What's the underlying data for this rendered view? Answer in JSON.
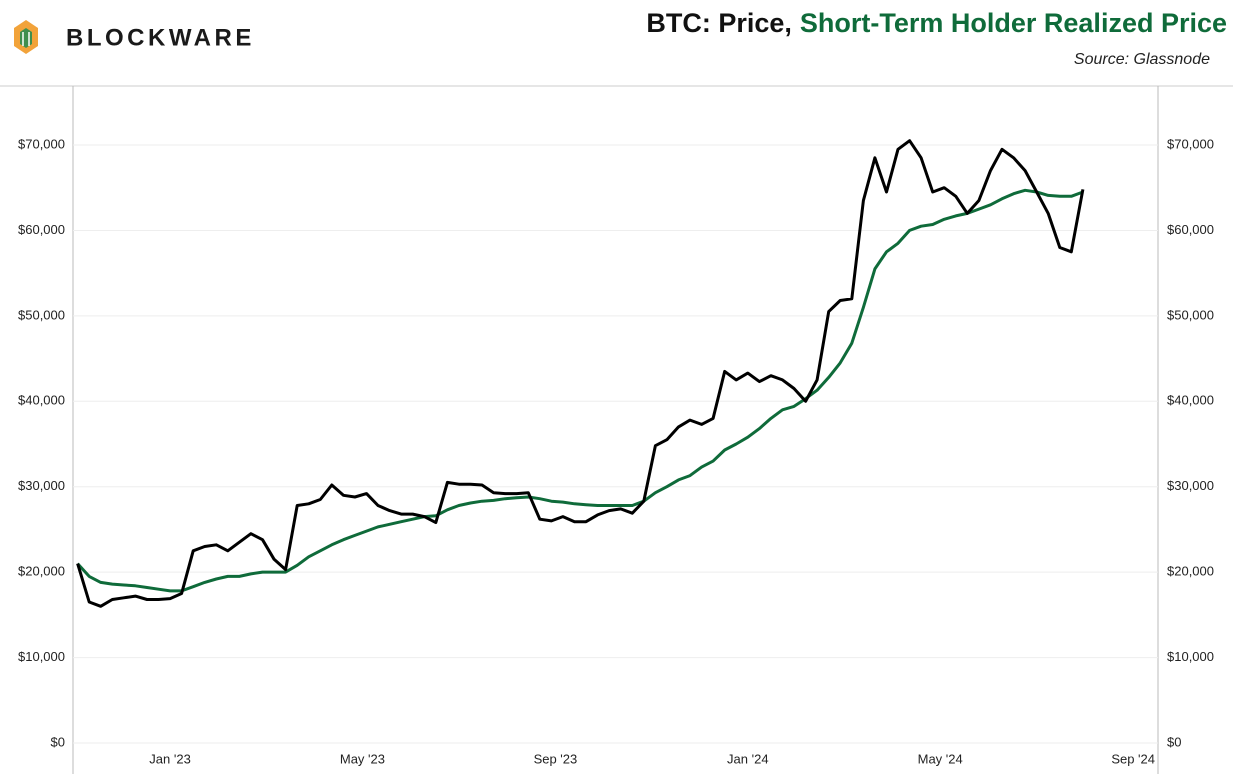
{
  "brand": "BLOCKWARE",
  "chart_data": {
    "type": "line",
    "title": [
      "BTC: Price,",
      "Short-Term Holder Realized Price"
    ],
    "subtitle": "Source: Glassnode",
    "x": [
      2022.84,
      2022.86,
      2022.88,
      2022.9,
      2022.92,
      2022.94,
      2022.96,
      2022.98,
      2023.0,
      2023.02,
      2023.04,
      2023.06,
      2023.08,
      2023.1,
      2023.12,
      2023.14,
      2023.16,
      2023.18,
      2023.2,
      2023.22,
      2023.24,
      2023.26,
      2023.28,
      2023.3,
      2023.32,
      2023.34,
      2023.36,
      2023.38,
      2023.4,
      2023.42,
      2023.44,
      2023.46,
      2023.48,
      2023.5,
      2023.52,
      2023.54,
      2023.56,
      2023.58,
      2023.6,
      2023.62,
      2023.64,
      2023.66,
      2023.68,
      2023.7,
      2023.72,
      2023.74,
      2023.76,
      2023.78,
      2023.8,
      2023.82,
      2023.84,
      2023.86,
      2023.88,
      2023.9,
      2023.92,
      2023.94,
      2023.96,
      2023.98,
      2024.0,
      2024.02,
      2024.04,
      2024.06,
      2024.08,
      2024.1,
      2024.12,
      2024.14,
      2024.16,
      2024.18,
      2024.2,
      2024.22,
      2024.24,
      2024.26,
      2024.28,
      2024.3,
      2024.32,
      2024.34,
      2024.36,
      2024.38,
      2024.4,
      2024.42,
      2024.44,
      2024.46,
      2024.48,
      2024.5,
      2024.52,
      2024.54,
      2024.56,
      2024.58
    ],
    "series": [
      {
        "color": "#000000",
        "values": [
          21000,
          16500,
          16000,
          16800,
          17000,
          17200,
          16800,
          16800,
          16900,
          17500,
          22500,
          23000,
          23200,
          22500,
          23500,
          24500,
          23800,
          21500,
          20300,
          27800,
          28000,
          28500,
          30200,
          29000,
          28800,
          29200,
          27800,
          27200,
          26800,
          26800,
          26500,
          25800,
          30500,
          30300,
          30300,
          30200,
          29300,
          29200,
          29200,
          29300,
          26200,
          26000,
          26500,
          25900,
          25900,
          26700,
          27200,
          27400,
          26900,
          28300,
          34800,
          35500,
          37000,
          37800,
          37300,
          38000,
          43500,
          42500,
          43300,
          42300,
          43000,
          42500,
          41500,
          40000,
          42500,
          50500,
          51800,
          52000,
          63500,
          68500,
          64500,
          69500,
          70500,
          68500,
          64500,
          65000,
          64000,
          62000,
          63500,
          67000,
          69500,
          68500,
          67000,
          64500,
          62000,
          58000,
          57500,
          64800
        ]
      },
      {
        "color": "#0f6b3a",
        "values": [
          21000,
          19500,
          18800,
          18600,
          18500,
          18400,
          18200,
          18000,
          17800,
          17800,
          18300,
          18800,
          19200,
          19500,
          19500,
          19800,
          20000,
          20000,
          20000,
          20800,
          21800,
          22500,
          23200,
          23800,
          24300,
          24800,
          25300,
          25600,
          25900,
          26200,
          26500,
          26600,
          27300,
          27800,
          28100,
          28300,
          28400,
          28600,
          28700,
          28800,
          28600,
          28300,
          28200,
          28000,
          27900,
          27800,
          27800,
          27800,
          27800,
          28300,
          29300,
          30000,
          30800,
          31300,
          32300,
          33000,
          34300,
          35000,
          35800,
          36800,
          38000,
          39000,
          39400,
          40300,
          41300,
          42800,
          44500,
          46800,
          51000,
          55500,
          57500,
          58500,
          60000,
          60500,
          60700,
          61300,
          61700,
          62000,
          62500,
          63000,
          63700,
          64300,
          64700,
          64500,
          64100,
          64000,
          64000,
          64500
        ]
      }
    ],
    "xlim": [
      2022.832,
      2024.71
    ],
    "xticks": [
      {
        "value": 2023.0,
        "label": "Jan '23"
      },
      {
        "value": 2023.333,
        "label": "May '23"
      },
      {
        "value": 2023.667,
        "label": "Sep '23"
      },
      {
        "value": 2024.0,
        "label": "Jan '24"
      },
      {
        "value": 2024.333,
        "label": "May '24"
      },
      {
        "value": 2024.667,
        "label": "Sep '24"
      }
    ],
    "ylim": [
      0,
      75000
    ],
    "yticks": [
      {
        "value": 0,
        "label": "$0"
      },
      {
        "value": 10000,
        "label": "$10,000"
      },
      {
        "value": 20000,
        "label": "$20,000"
      },
      {
        "value": 30000,
        "label": "$30,000"
      },
      {
        "value": 40000,
        "label": "$40,000"
      },
      {
        "value": 50000,
        "label": "$50,000"
      },
      {
        "value": 60000,
        "label": "$60,000"
      },
      {
        "value": 70000,
        "label": "$70,000"
      }
    ],
    "y2lim": [
      0,
      75000
    ],
    "y2ticks": [
      {
        "value": 0,
        "label": "$0"
      },
      {
        "value": 10000,
        "label": "$10,000"
      },
      {
        "value": 20000,
        "label": "$20,000"
      },
      {
        "value": 30000,
        "label": "$30,000"
      },
      {
        "value": 40000,
        "label": "$40,000"
      },
      {
        "value": 50000,
        "label": "$50,000"
      },
      {
        "value": 60000,
        "label": "$60,000"
      },
      {
        "value": 70000,
        "label": "$70,000"
      }
    ],
    "grid": true
  }
}
